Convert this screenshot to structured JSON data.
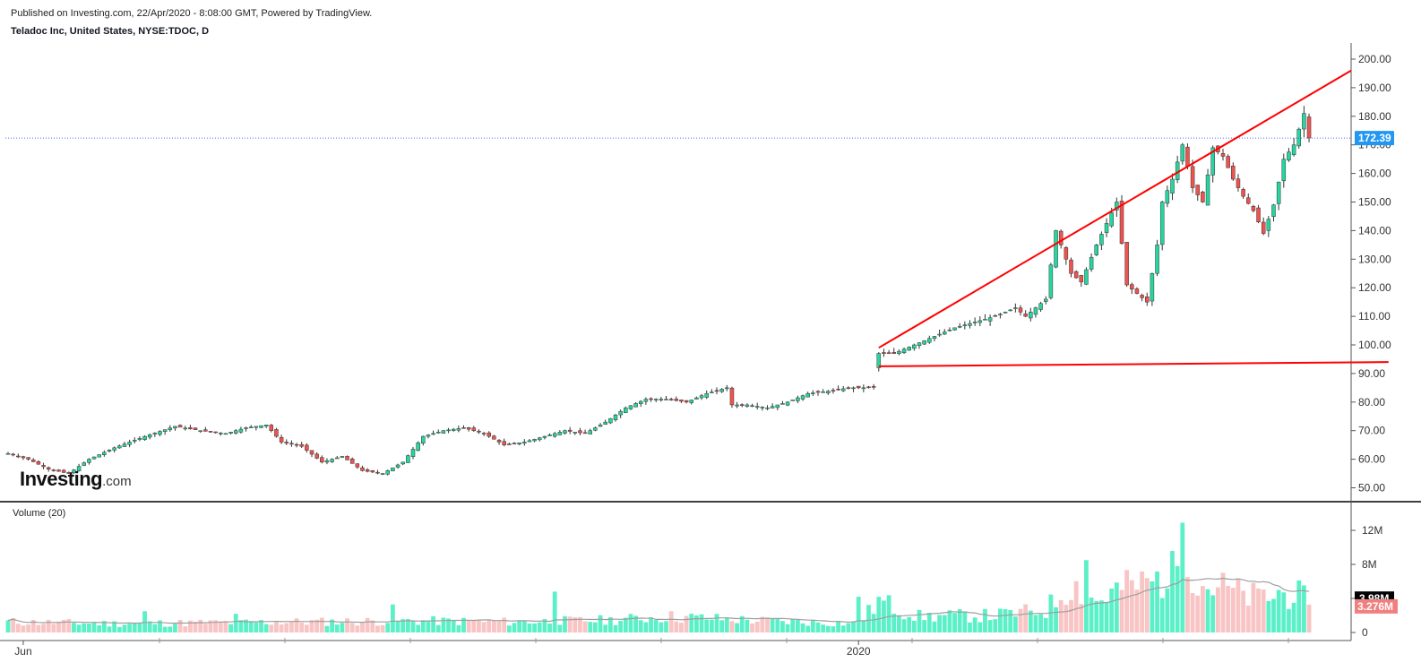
{
  "header": {
    "published": "Published on Investing.com, 22/Apr/2020 - 8:08:00 GMT, Powered by TradingView.",
    "instrument": "Teladoc Inc, United States, NYSE:TDOC, D"
  },
  "watermark": {
    "brand": "Investing",
    "suffix": ".com"
  },
  "volume_label": "Volume (20)",
  "colors": {
    "up": "#26d6a0",
    "down": "#ef5350",
    "up_volume": "#5cf0c8",
    "down_volume": "#f8c4c4",
    "trendline": "#ff0000",
    "last_price_line": "#4a6cf7",
    "last_price_badge": "#2196f3",
    "volume_ma": "#9e9e9e",
    "axis": "#000000"
  },
  "chart_data": [
    {
      "type": "candlestick",
      "ylim": [
        45,
        210
      ],
      "y_ticks": [
        "200.00",
        "190.00",
        "180.00",
        "170.00",
        "160.00",
        "150.00",
        "140.00",
        "130.00",
        "120.00",
        "110.00",
        "100.00",
        "90.00",
        "80.00",
        "70.00",
        "60.00",
        "50.00"
      ],
      "y_tick_values": [
        200,
        190,
        180,
        170,
        160,
        150,
        140,
        130,
        120,
        110,
        100,
        90,
        80,
        70,
        60,
        50
      ],
      "x_ticks": [
        "Jun",
        "2020"
      ],
      "x_tick_bar_index": [
        3,
        168
      ],
      "last_price": 172.39,
      "last_price_label": "172.39",
      "support_line": [
        [
          172,
          92.5
        ],
        [
          255,
          94
        ]
      ],
      "resistance_line": [
        [
          172,
          99
        ],
        [
          255,
          196
        ]
      ],
      "anchors": [
        [
          0,
          62
        ],
        [
          4,
          60
        ],
        [
          8,
          56.5
        ],
        [
          12,
          55
        ],
        [
          16,
          60
        ],
        [
          21,
          64
        ],
        [
          27,
          68
        ],
        [
          33,
          71.5
        ],
        [
          38,
          70
        ],
        [
          43,
          69
        ],
        [
          47,
          71
        ],
        [
          51,
          72
        ],
        [
          54,
          66
        ],
        [
          58,
          64.5
        ],
        [
          62,
          59
        ],
        [
          66,
          61
        ],
        [
          70,
          56
        ],
        [
          74,
          55
        ],
        [
          78,
          59
        ],
        [
          82,
          68
        ],
        [
          86,
          70
        ],
        [
          90,
          71
        ],
        [
          94,
          69
        ],
        [
          98,
          65
        ],
        [
          102,
          66
        ],
        [
          106,
          68
        ],
        [
          110,
          70
        ],
        [
          114,
          69
        ],
        [
          118,
          73
        ],
        [
          122,
          78
        ],
        [
          126,
          81
        ],
        [
          130,
          81
        ],
        [
          134,
          80
        ],
        [
          138,
          83
        ],
        [
          142,
          85
        ],
        [
          143,
          79
        ],
        [
          146,
          79
        ],
        [
          150,
          78
        ],
        [
          154,
          80
        ],
        [
          158,
          83
        ],
        [
          163,
          84
        ],
        [
          166,
          85
        ],
        [
          169,
          85
        ],
        [
          171,
          85.5
        ],
        [
          172,
          97
        ],
        [
          175,
          97
        ],
        [
          179,
          100
        ],
        [
          183,
          103
        ],
        [
          187,
          106
        ],
        [
          191,
          108
        ],
        [
          195,
          110
        ],
        [
          199,
          113
        ],
        [
          201,
          110
        ],
        [
          205,
          116
        ],
        [
          207,
          140
        ],
        [
          210,
          125
        ],
        [
          212,
          122
        ],
        [
          215,
          135
        ],
        [
          219,
          150
        ],
        [
          221,
          121
        ],
        [
          223,
          118
        ],
        [
          225,
          115
        ],
        [
          227,
          135
        ],
        [
          228,
          150
        ],
        [
          230,
          158
        ],
        [
          232,
          170
        ],
        [
          234,
          155
        ],
        [
          236,
          150
        ],
        [
          238,
          169
        ],
        [
          240,
          166
        ],
        [
          242,
          158
        ],
        [
          244,
          152
        ],
        [
          246,
          147
        ],
        [
          248,
          139
        ],
        [
          250,
          149
        ],
        [
          252,
          165
        ],
        [
          254,
          170
        ],
        [
          256,
          181
        ],
        [
          257,
          172.39
        ]
      ],
      "volume": {
        "ylim": [
          0,
          14
        ],
        "y_ticks": [
          "12M",
          "8M",
          "4M",
          "0"
        ],
        "y_tick_values": [
          12,
          8,
          4,
          0
        ],
        "ma_label": "3.98M",
        "ma_value": 3.98,
        "last_label": "3.276M",
        "last_value": 3.276,
        "anchors": [
          [
            0,
            1.2
          ],
          [
            20,
            1.0
          ],
          [
            40,
            1.1
          ],
          [
            60,
            1.2
          ],
          [
            80,
            1.3
          ],
          [
            100,
            1.2
          ],
          [
            120,
            1.4
          ],
          [
            130,
            1.8
          ],
          [
            150,
            1.3
          ],
          [
            168,
            1.0
          ],
          [
            172,
            3.5
          ],
          [
            180,
            1.8
          ],
          [
            195,
            1.9
          ],
          [
            205,
            2.5
          ],
          [
            210,
            5.5
          ],
          [
            215,
            3.5
          ],
          [
            220,
            5.0
          ],
          [
            225,
            5.5
          ],
          [
            230,
            6.5
          ],
          [
            233,
            9.0
          ],
          [
            235,
            5.5
          ],
          [
            240,
            5.0
          ],
          [
            245,
            4.0
          ],
          [
            250,
            4.0
          ],
          [
            254,
            4.5
          ],
          [
            257,
            3.3
          ]
        ],
        "spikes": [
          [
            27,
            2.5
          ],
          [
            45,
            2.2
          ],
          [
            76,
            3.3
          ],
          [
            108,
            4.8
          ],
          [
            168,
            4.2
          ],
          [
            213,
            8.5
          ],
          [
            220,
            5.0
          ],
          [
            226,
            6.0
          ],
          [
            231,
            7.8
          ],
          [
            232,
            12.9
          ],
          [
            233,
            6.5
          ],
          [
            251,
            5.0
          ]
        ]
      }
    }
  ]
}
